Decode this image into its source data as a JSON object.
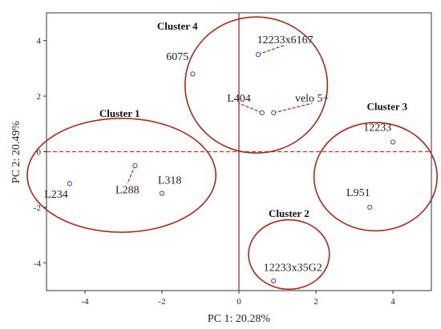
{
  "chart_data": {
    "type": "scatter",
    "title": "",
    "xlabel": "PC 1: 20.28%",
    "ylabel": "PC 2: 20.49%",
    "xlim": [
      -5,
      5
    ],
    "ylim": [
      -5,
      5
    ],
    "xticks": [
      -4,
      -2,
      0,
      2,
      4
    ],
    "yticks": [
      -4,
      -2,
      0,
      2,
      4
    ],
    "grid": false,
    "reference_lines": {
      "x": 0,
      "y": 0,
      "color": "#c0392b"
    },
    "colors": {
      "point": "#5a3fc0",
      "ellipse": "#a52a1a",
      "connector": "#a52a1a"
    },
    "points": [
      {
        "label": "6075",
        "x": -1.2,
        "y": 2.8,
        "label_x": -1.6,
        "label_y": 3.3
      },
      {
        "label": "12233x6167",
        "x": 0.5,
        "y": 3.5,
        "label_x": 1.2,
        "label_y": 3.9,
        "connector": true
      },
      {
        "label": "L404",
        "x": 0.6,
        "y": 1.4,
        "label_x": 0.0,
        "label_y": 1.8,
        "connector": true
      },
      {
        "label": "velo 5+",
        "x": 0.9,
        "y": 1.4,
        "label_x": 1.9,
        "label_y": 1.8,
        "connector": true
      },
      {
        "label": "12233",
        "x": 4.0,
        "y": 0.35,
        "label_x": 3.6,
        "label_y": 0.75
      },
      {
        "label": "L951",
        "x": 3.4,
        "y": -2.0,
        "label_x": 3.1,
        "label_y": -1.6
      },
      {
        "label": "L234",
        "x": -4.4,
        "y": -1.15,
        "label_x": -4.75,
        "label_y": -1.65
      },
      {
        "label": "L288",
        "x": -2.7,
        "y": -0.5,
        "label_x": -2.9,
        "label_y": -1.5,
        "connector": true
      },
      {
        "label": "L318",
        "x": -2.0,
        "y": -1.5,
        "label_x": -1.8,
        "label_y": -1.15
      },
      {
        "label": "12233x35G2",
        "x": 0.9,
        "y": -4.65,
        "label_x": 1.4,
        "label_y": -4.3
      }
    ],
    "clusters": [
      {
        "name": "Cluster 4",
        "cx": 0.45,
        "cy": 2.4,
        "rx": 1.85,
        "ry": 2.45,
        "label_x": -1.6,
        "label_y": 4.4
      },
      {
        "name": "Cluster 1",
        "cx": -3.05,
        "cy": -0.85,
        "rx": 2.45,
        "ry": 2.05,
        "label_x": -3.1,
        "label_y": 1.25
      },
      {
        "name": "Cluster 3",
        "cx": 3.55,
        "cy": -0.9,
        "rx": 1.6,
        "ry": 1.95,
        "label_x": 3.85,
        "label_y": 1.5
      },
      {
        "name": "Cluster 2",
        "cx": 1.3,
        "cy": -3.7,
        "rx": 1.05,
        "ry": 1.25,
        "label_x": 1.3,
        "label_y": -2.35
      }
    ]
  }
}
